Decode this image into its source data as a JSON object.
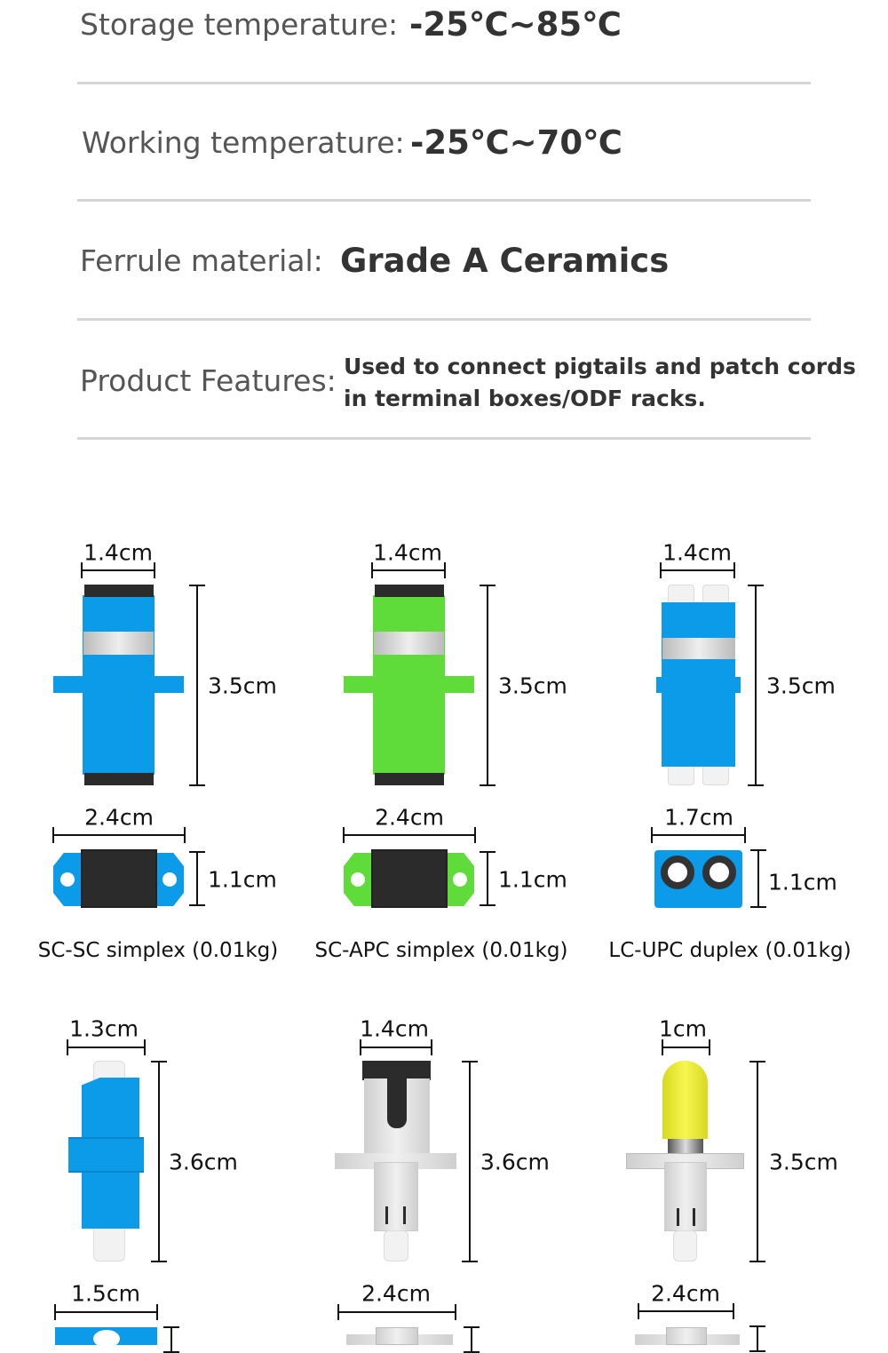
{
  "specs": [
    {
      "label": "Storage temperature:",
      "value": "-25℃~85℃"
    },
    {
      "label": "Working temperature:",
      "value": "-25℃~70℃"
    },
    {
      "label": "Ferrule material:",
      "value": "Grade A Ceramics"
    },
    {
      "label": "Product Features:",
      "value_lines": [
        "Used to connect pigtails and patch cords",
        "in terminal boxes/ODF racks."
      ]
    }
  ],
  "colors": {
    "blue": "#0b9be8",
    "green": "#5fdc3a",
    "yellow": "#e8e82a",
    "black": "#2b2b2b"
  },
  "products": [
    {
      "width": "1.4cm",
      "height": "3.5cm",
      "face_width": "2.4cm",
      "face_height": "1.1cm",
      "caption": "SC-SC simplex (0.01kg)"
    },
    {
      "width": "1.4cm",
      "height": "3.5cm",
      "face_width": "2.4cm",
      "face_height": "1.1cm",
      "caption": "SC-APC simplex (0.01kg)"
    },
    {
      "width": "1.4cm",
      "height": "3.5cm",
      "face_width": "1.7cm",
      "face_height": "1.1cm",
      "caption": "LC-UPC duplex (0.01kg)"
    },
    {
      "width": "1.3cm",
      "height": "3.6cm",
      "face_width": "1.5cm"
    },
    {
      "width": "1.4cm",
      "height": "3.6cm",
      "face_width": "2.4cm"
    },
    {
      "width": "1cm",
      "height": "3.5cm",
      "face_width": "2.4cm"
    }
  ]
}
